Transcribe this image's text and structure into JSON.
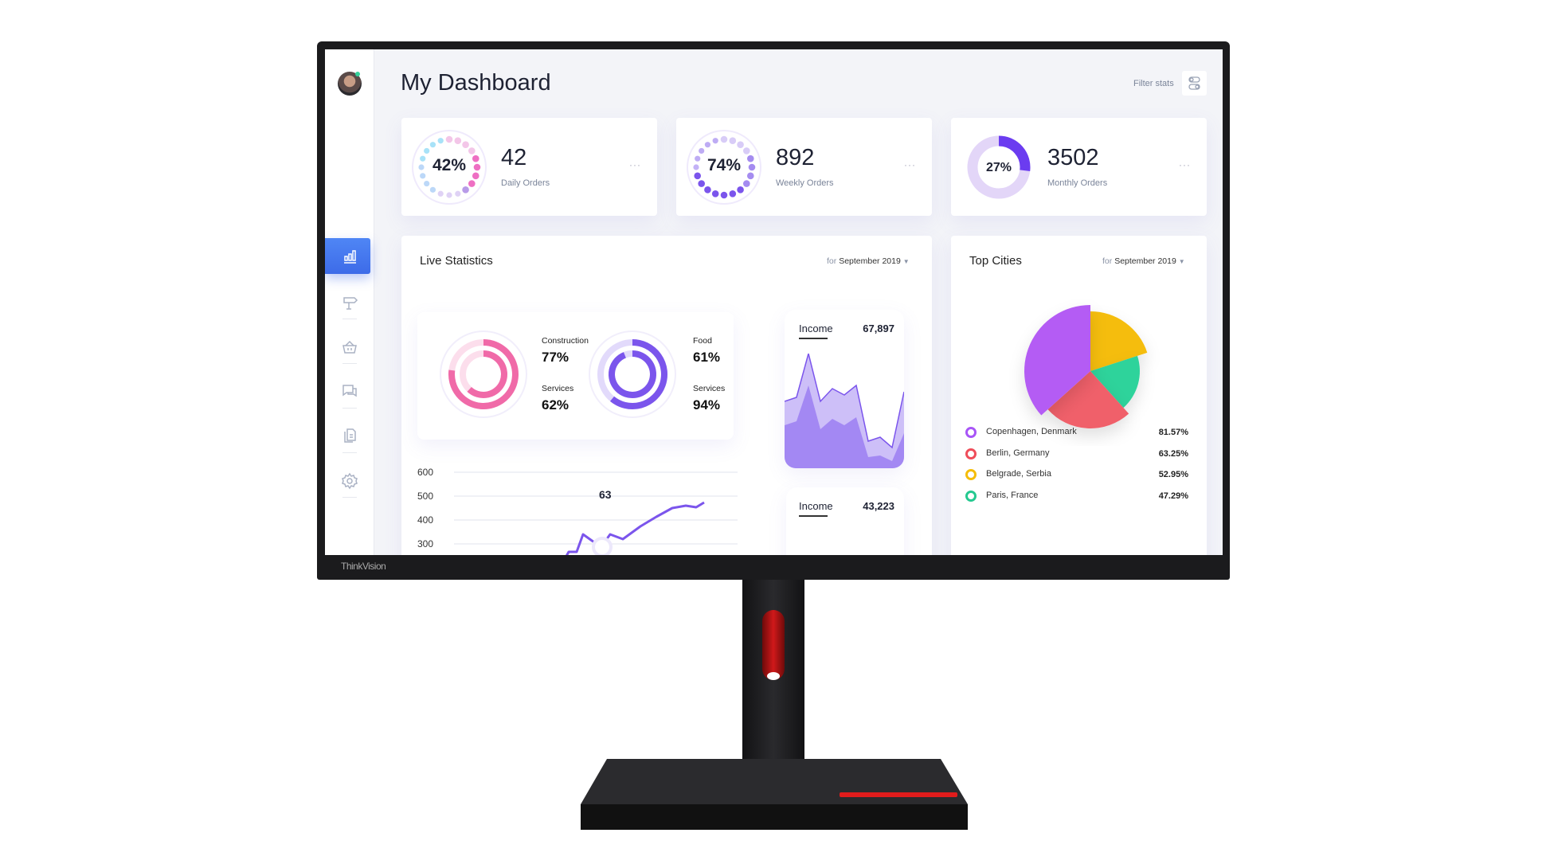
{
  "header": {
    "title": "My Dashboard",
    "filter_label": "Filter stats",
    "filter_icon": "toggle-icon"
  },
  "sidebar": {
    "items": [
      {
        "icon": "bar-chart-icon",
        "active": true
      },
      {
        "icon": "signpost-icon"
      },
      {
        "icon": "basket-icon"
      },
      {
        "icon": "chat-icon"
      },
      {
        "icon": "documents-icon"
      },
      {
        "icon": "gear-icon"
      }
    ]
  },
  "stats": [
    {
      "percent": "42%",
      "value": "42",
      "label": "Daily Orders",
      "fill": 0.42
    },
    {
      "percent": "74%",
      "value": "892",
      "label": "Weekly Orders",
      "fill": 0.74
    },
    {
      "percent": "27%",
      "value": "3502",
      "label": "Monthly Orders",
      "fill": 0.27
    }
  ],
  "live": {
    "title": "Live Statistics",
    "for": "for",
    "period": "September 2019",
    "rings": [
      {
        "a_label": "Construction",
        "a_value": "77%",
        "a": 0.77,
        "b_label": "Services",
        "b_value": "62%",
        "b": 0.62,
        "color": "#f06aa8"
      },
      {
        "a_label": "Food",
        "a_value": "61%",
        "a": 0.61,
        "b_label": "Services",
        "b_value": "94%",
        "b": 0.94,
        "color": "#7b55ec"
      }
    ],
    "line": {
      "y_ticks": [
        "600",
        "500",
        "400",
        "300"
      ],
      "highlight": "63"
    },
    "income": [
      {
        "label": "Income",
        "value": "67,897"
      },
      {
        "label": "Income",
        "value": "43,223"
      }
    ]
  },
  "cities": {
    "title": "Top Cities",
    "for": "for",
    "period": "September 2019",
    "items": [
      {
        "name": "Copenhagen, Denmark",
        "pct": "81.57%",
        "color": "#a855f7"
      },
      {
        "name": "Berlin, Germany",
        "pct": "63.25%",
        "color": "#ef4d5a"
      },
      {
        "name": "Belgrade, Serbia",
        "pct": "52.95%",
        "color": "#f5bd0a"
      },
      {
        "name": "Paris, France",
        "pct": "47.29%",
        "color": "#25c990"
      }
    ]
  },
  "brand": "ThinkVision",
  "colors": {
    "accent": "#4a7cf0",
    "purple": "#7b55ec",
    "pink": "#f06aa8"
  }
}
